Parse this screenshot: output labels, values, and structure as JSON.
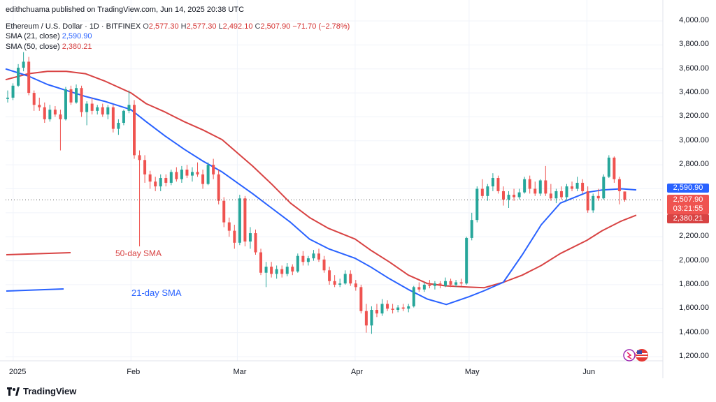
{
  "header": {
    "publisher": "edithchuama published on TradingView.com, Jun 14, 2025 20:38 UTC",
    "symbol": "Ethereum / U.S. Dollar · 1D · BITFINEX",
    "o_label": "O",
    "o": "2,577.30",
    "h_label": "H",
    "h": "2,577.30",
    "l_label": "L",
    "l": "2,492.10",
    "c_label": "C",
    "c": "2,507.90",
    "change": "−71.70 (−2.78%)",
    "sma21_label": "SMA (21, close)",
    "sma21_value": "2,590.90",
    "sma50_label": "SMA (50, close)",
    "sma50_value": "2,380.21"
  },
  "price_labels": {
    "sma21": "2,590.90",
    "last": "2,507.90",
    "countdown": "03:21:55",
    "sma50": "2,380.21"
  },
  "annotations": {
    "sma50": "50-day SMA",
    "sma21": "21-day SMA"
  },
  "brand": {
    "name": "TradingView",
    "logo_icon": "tradingview-logo-icon"
  },
  "colors": {
    "up": "#26a69a",
    "down": "#ef5350",
    "sma21": "#2962ff",
    "sma50": "#d84343"
  },
  "chart_data": {
    "type": "candlestick",
    "ylim": [
      1200,
      4000
    ],
    "yticks": [
      1200,
      1400,
      1600,
      1800,
      2000,
      2200,
      2400,
      2600,
      2800,
      3000,
      3200,
      3400,
      3600,
      3800,
      4000
    ],
    "ytick_labels": [
      "1,200.00",
      "1,400.00",
      "1,600.00",
      "1,800.00",
      "2,000.00",
      "2,200.00",
      "2,400.00",
      "2,600.00",
      "2,800.00",
      "3,000.00",
      "3,200.00",
      "3,400.00",
      "3,600.00",
      "3,800.00",
      "4,000.00"
    ],
    "xlim": [
      "2024-12-30",
      "2025-06-21"
    ],
    "xticks": [
      {
        "date": "2025-01-01",
        "label": "2025"
      },
      {
        "date": "2025-02-01",
        "label": "Feb"
      },
      {
        "date": "2025-03-01",
        "label": "Mar"
      },
      {
        "date": "2025-04-01",
        "label": "Apr"
      },
      {
        "date": "2025-05-01",
        "label": "May"
      },
      {
        "date": "2025-06-01",
        "label": "Jun"
      }
    ],
    "candles": [
      {
        "o": 3350,
        "h": 3420,
        "l": 3320,
        "c": 3360
      },
      {
        "o": 3360,
        "h": 3480,
        "l": 3340,
        "c": 3460
      },
      {
        "o": 3460,
        "h": 3640,
        "l": 3450,
        "c": 3610
      },
      {
        "o": 3610,
        "h": 3740,
        "l": 3580,
        "c": 3660
      },
      {
        "o": 3660,
        "h": 3700,
        "l": 3380,
        "c": 3400
      },
      {
        "o": 3400,
        "h": 3420,
        "l": 3250,
        "c": 3300
      },
      {
        "o": 3300,
        "h": 3360,
        "l": 3250,
        "c": 3280
      },
      {
        "o": 3280,
        "h": 3320,
        "l": 3150,
        "c": 3180
      },
      {
        "o": 3180,
        "h": 3300,
        "l": 3160,
        "c": 3260
      },
      {
        "o": 3260,
        "h": 3290,
        "l": 3200,
        "c": 3220
      },
      {
        "o": 3220,
        "h": 3260,
        "l": 2920,
        "c": 3180
      },
      {
        "o": 3180,
        "h": 3450,
        "l": 3170,
        "c": 3430
      },
      {
        "o": 3430,
        "h": 3460,
        "l": 3300,
        "c": 3320
      },
      {
        "o": 3320,
        "h": 3470,
        "l": 3310,
        "c": 3440
      },
      {
        "o": 3440,
        "h": 3460,
        "l": 3200,
        "c": 3240
      },
      {
        "o": 3240,
        "h": 3330,
        "l": 3130,
        "c": 3310
      },
      {
        "o": 3310,
        "h": 3360,
        "l": 3220,
        "c": 3250
      },
      {
        "o": 3250,
        "h": 3300,
        "l": 3220,
        "c": 3280
      },
      {
        "o": 3280,
        "h": 3310,
        "l": 3200,
        "c": 3220
      },
      {
        "o": 3220,
        "h": 3300,
        "l": 3180,
        "c": 3280
      },
      {
        "o": 3280,
        "h": 3300,
        "l": 3070,
        "c": 3100
      },
      {
        "o": 3100,
        "h": 3180,
        "l": 3050,
        "c": 3150
      },
      {
        "o": 3150,
        "h": 3260,
        "l": 3130,
        "c": 3250
      },
      {
        "o": 3250,
        "h": 3420,
        "l": 3230,
        "c": 3300
      },
      {
        "o": 3300,
        "h": 3340,
        "l": 2850,
        "c": 2880
      },
      {
        "o": 2880,
        "h": 2920,
        "l": 2120,
        "c": 2840
      },
      {
        "o": 2840,
        "h": 2880,
        "l": 2650,
        "c": 2720
      },
      {
        "o": 2720,
        "h": 2750,
        "l": 2600,
        "c": 2660
      },
      {
        "o": 2660,
        "h": 2700,
        "l": 2580,
        "c": 2620
      },
      {
        "o": 2620,
        "h": 2720,
        "l": 2580,
        "c": 2690
      },
      {
        "o": 2690,
        "h": 2720,
        "l": 2620,
        "c": 2650
      },
      {
        "o": 2650,
        "h": 2760,
        "l": 2630,
        "c": 2740
      },
      {
        "o": 2740,
        "h": 2780,
        "l": 2660,
        "c": 2680
      },
      {
        "o": 2680,
        "h": 2790,
        "l": 2650,
        "c": 2760
      },
      {
        "o": 2760,
        "h": 2800,
        "l": 2690,
        "c": 2710
      },
      {
        "o": 2710,
        "h": 2780,
        "l": 2660,
        "c": 2740
      },
      {
        "o": 2740,
        "h": 2820,
        "l": 2700,
        "c": 2720
      },
      {
        "o": 2720,
        "h": 2760,
        "l": 2600,
        "c": 2640
      },
      {
        "o": 2640,
        "h": 2820,
        "l": 2630,
        "c": 2800
      },
      {
        "o": 2800,
        "h": 2850,
        "l": 2680,
        "c": 2720
      },
      {
        "o": 2720,
        "h": 2760,
        "l": 2470,
        "c": 2500
      },
      {
        "o": 2500,
        "h": 2530,
        "l": 2280,
        "c": 2320
      },
      {
        "o": 2320,
        "h": 2360,
        "l": 2200,
        "c": 2250
      },
      {
        "o": 2250,
        "h": 2300,
        "l": 2100,
        "c": 2150
      },
      {
        "o": 2150,
        "h": 2550,
        "l": 2130,
        "c": 2520
      },
      {
        "o": 2520,
        "h": 2540,
        "l": 2120,
        "c": 2160
      },
      {
        "o": 2160,
        "h": 2280,
        "l": 2100,
        "c": 2230
      },
      {
        "o": 2230,
        "h": 2260,
        "l": 2050,
        "c": 2070
      },
      {
        "o": 2070,
        "h": 2100,
        "l": 1880,
        "c": 1900
      },
      {
        "o": 1900,
        "h": 1990,
        "l": 1780,
        "c": 1950
      },
      {
        "o": 1950,
        "h": 1990,
        "l": 1860,
        "c": 1890
      },
      {
        "o": 1890,
        "h": 1960,
        "l": 1850,
        "c": 1930
      },
      {
        "o": 1930,
        "h": 1960,
        "l": 1860,
        "c": 1890
      },
      {
        "o": 1890,
        "h": 1980,
        "l": 1870,
        "c": 1950
      },
      {
        "o": 1950,
        "h": 1970,
        "l": 1880,
        "c": 1910
      },
      {
        "o": 1910,
        "h": 2060,
        "l": 1900,
        "c": 2040
      },
      {
        "o": 2040,
        "h": 2080,
        "l": 1960,
        "c": 1990
      },
      {
        "o": 1990,
        "h": 2040,
        "l": 1960,
        "c": 2020
      },
      {
        "o": 2020,
        "h": 2090,
        "l": 2000,
        "c": 2060
      },
      {
        "o": 2060,
        "h": 2100,
        "l": 1990,
        "c": 2010
      },
      {
        "o": 2010,
        "h": 2040,
        "l": 1900,
        "c": 1920
      },
      {
        "o": 1920,
        "h": 1950,
        "l": 1800,
        "c": 1830
      },
      {
        "o": 1830,
        "h": 1880,
        "l": 1780,
        "c": 1800
      },
      {
        "o": 1800,
        "h": 1850,
        "l": 1780,
        "c": 1810
      },
      {
        "o": 1810,
        "h": 1920,
        "l": 1800,
        "c": 1890
      },
      {
        "o": 1890,
        "h": 1920,
        "l": 1790,
        "c": 1810
      },
      {
        "o": 1810,
        "h": 1840,
        "l": 1750,
        "c": 1780
      },
      {
        "o": 1780,
        "h": 1800,
        "l": 1560,
        "c": 1580
      },
      {
        "o": 1580,
        "h": 1640,
        "l": 1400,
        "c": 1460
      },
      {
        "o": 1460,
        "h": 1620,
        "l": 1390,
        "c": 1590
      },
      {
        "o": 1590,
        "h": 1640,
        "l": 1530,
        "c": 1560
      },
      {
        "o": 1560,
        "h": 1680,
        "l": 1540,
        "c": 1640
      },
      {
        "o": 1640,
        "h": 1670,
        "l": 1580,
        "c": 1600
      },
      {
        "o": 1600,
        "h": 1640,
        "l": 1560,
        "c": 1590
      },
      {
        "o": 1590,
        "h": 1630,
        "l": 1570,
        "c": 1610
      },
      {
        "o": 1610,
        "h": 1640,
        "l": 1580,
        "c": 1600
      },
      {
        "o": 1600,
        "h": 1640,
        "l": 1570,
        "c": 1620
      },
      {
        "o": 1620,
        "h": 1790,
        "l": 1610,
        "c": 1780
      },
      {
        "o": 1780,
        "h": 1820,
        "l": 1740,
        "c": 1760
      },
      {
        "o": 1760,
        "h": 1820,
        "l": 1740,
        "c": 1800
      },
      {
        "o": 1800,
        "h": 1840,
        "l": 1770,
        "c": 1790
      },
      {
        "o": 1790,
        "h": 1830,
        "l": 1760,
        "c": 1810
      },
      {
        "o": 1810,
        "h": 1830,
        "l": 1770,
        "c": 1790
      },
      {
        "o": 1790,
        "h": 1860,
        "l": 1780,
        "c": 1830
      },
      {
        "o": 1830,
        "h": 1850,
        "l": 1780,
        "c": 1800
      },
      {
        "o": 1800,
        "h": 1840,
        "l": 1780,
        "c": 1820
      },
      {
        "o": 1820,
        "h": 1850,
        "l": 1790,
        "c": 1810
      },
      {
        "o": 1810,
        "h": 2200,
        "l": 1800,
        "c": 2190
      },
      {
        "o": 2190,
        "h": 2400,
        "l": 2170,
        "c": 2340
      },
      {
        "o": 2340,
        "h": 2620,
        "l": 2320,
        "c": 2600
      },
      {
        "o": 2600,
        "h": 2680,
        "l": 2520,
        "c": 2540
      },
      {
        "o": 2540,
        "h": 2640,
        "l": 2500,
        "c": 2620
      },
      {
        "o": 2620,
        "h": 2730,
        "l": 2580,
        "c": 2690
      },
      {
        "o": 2690,
        "h": 2710,
        "l": 2560,
        "c": 2580
      },
      {
        "o": 2580,
        "h": 2620,
        "l": 2460,
        "c": 2510
      },
      {
        "o": 2510,
        "h": 2580,
        "l": 2440,
        "c": 2550
      },
      {
        "o": 2550,
        "h": 2600,
        "l": 2500,
        "c": 2530
      },
      {
        "o": 2530,
        "h": 2600,
        "l": 2510,
        "c": 2570
      },
      {
        "o": 2570,
        "h": 2700,
        "l": 2560,
        "c": 2680
      },
      {
        "o": 2680,
        "h": 2710,
        "l": 2560,
        "c": 2600
      },
      {
        "o": 2600,
        "h": 2660,
        "l": 2540,
        "c": 2560
      },
      {
        "o": 2560,
        "h": 2680,
        "l": 2540,
        "c": 2670
      },
      {
        "o": 2670,
        "h": 2790,
        "l": 2540,
        "c": 2560
      },
      {
        "o": 2560,
        "h": 2640,
        "l": 2500,
        "c": 2520
      },
      {
        "o": 2520,
        "h": 2600,
        "l": 2480,
        "c": 2580
      },
      {
        "o": 2580,
        "h": 2620,
        "l": 2510,
        "c": 2530
      },
      {
        "o": 2530,
        "h": 2640,
        "l": 2500,
        "c": 2620
      },
      {
        "o": 2620,
        "h": 2660,
        "l": 2580,
        "c": 2600
      },
      {
        "o": 2600,
        "h": 2700,
        "l": 2580,
        "c": 2650
      },
      {
        "o": 2650,
        "h": 2680,
        "l": 2560,
        "c": 2580
      },
      {
        "o": 2580,
        "h": 2620,
        "l": 2400,
        "c": 2420
      },
      {
        "o": 2420,
        "h": 2560,
        "l": 2400,
        "c": 2540
      },
      {
        "o": 2540,
        "h": 2600,
        "l": 2500,
        "c": 2520
      },
      {
        "o": 2520,
        "h": 2720,
        "l": 2510,
        "c": 2700
      },
      {
        "o": 2700,
        "h": 2880,
        "l": 2690,
        "c": 2860
      },
      {
        "o": 2860,
        "h": 2870,
        "l": 2650,
        "c": 2680
      },
      {
        "o": 2680,
        "h": 2700,
        "l": 2470,
        "c": 2580
      },
      {
        "o": 2577.3,
        "h": 2577.3,
        "l": 2492.1,
        "c": 2507.9
      }
    ],
    "sma21": [
      {
        "date": "2024-12-30",
        "v": 3600
      },
      {
        "date": "2025-01-05",
        "v": 3540
      },
      {
        "date": "2025-01-10",
        "v": 3470
      },
      {
        "date": "2025-01-15",
        "v": 3420
      },
      {
        "date": "2025-01-20",
        "v": 3370
      },
      {
        "date": "2025-01-25",
        "v": 3330
      },
      {
        "date": "2025-02-01",
        "v": 3260
      },
      {
        "date": "2025-02-05",
        "v": 3160
      },
      {
        "date": "2025-02-10",
        "v": 3040
      },
      {
        "date": "2025-02-15",
        "v": 2930
      },
      {
        "date": "2025-02-20",
        "v": 2830
      },
      {
        "date": "2025-02-25",
        "v": 2740
      },
      {
        "date": "2025-03-01",
        "v": 2650
      },
      {
        "date": "2025-03-05",
        "v": 2560
      },
      {
        "date": "2025-03-10",
        "v": 2440
      },
      {
        "date": "2025-03-15",
        "v": 2320
      },
      {
        "date": "2025-03-20",
        "v": 2180
      },
      {
        "date": "2025-03-25",
        "v": 2100
      },
      {
        "date": "2025-04-01",
        "v": 2020
      },
      {
        "date": "2025-04-05",
        "v": 1950
      },
      {
        "date": "2025-04-10",
        "v": 1850
      },
      {
        "date": "2025-04-15",
        "v": 1760
      },
      {
        "date": "2025-04-20",
        "v": 1680
      },
      {
        "date": "2025-04-25",
        "v": 1635
      },
      {
        "date": "2025-05-01",
        "v": 1700
      },
      {
        "date": "2025-05-05",
        "v": 1750
      },
      {
        "date": "2025-05-10",
        "v": 1820
      },
      {
        "date": "2025-05-15",
        "v": 2050
      },
      {
        "date": "2025-05-20",
        "v": 2300
      },
      {
        "date": "2025-05-25",
        "v": 2480
      },
      {
        "date": "2025-06-01",
        "v": 2570
      },
      {
        "date": "2025-06-05",
        "v": 2590
      },
      {
        "date": "2025-06-10",
        "v": 2600
      },
      {
        "date": "2025-06-14",
        "v": 2590.9
      }
    ],
    "sma50": [
      {
        "date": "2024-12-30",
        "v": 3510
      },
      {
        "date": "2025-01-05",
        "v": 3560
      },
      {
        "date": "2025-01-10",
        "v": 3580
      },
      {
        "date": "2025-01-15",
        "v": 3580
      },
      {
        "date": "2025-01-20",
        "v": 3560
      },
      {
        "date": "2025-01-25",
        "v": 3500
      },
      {
        "date": "2025-02-01",
        "v": 3400
      },
      {
        "date": "2025-02-05",
        "v": 3310
      },
      {
        "date": "2025-02-10",
        "v": 3240
      },
      {
        "date": "2025-02-15",
        "v": 3160
      },
      {
        "date": "2025-02-20",
        "v": 3090
      },
      {
        "date": "2025-02-25",
        "v": 3010
      },
      {
        "date": "2025-03-01",
        "v": 2900
      },
      {
        "date": "2025-03-05",
        "v": 2790
      },
      {
        "date": "2025-03-10",
        "v": 2640
      },
      {
        "date": "2025-03-15",
        "v": 2480
      },
      {
        "date": "2025-03-20",
        "v": 2360
      },
      {
        "date": "2025-03-25",
        "v": 2270
      },
      {
        "date": "2025-04-01",
        "v": 2180
      },
      {
        "date": "2025-04-05",
        "v": 2090
      },
      {
        "date": "2025-04-10",
        "v": 1990
      },
      {
        "date": "2025-04-15",
        "v": 1880
      },
      {
        "date": "2025-04-20",
        "v": 1810
      },
      {
        "date": "2025-04-25",
        "v": 1790
      },
      {
        "date": "2025-05-01",
        "v": 1780
      },
      {
        "date": "2025-05-05",
        "v": 1775
      },
      {
        "date": "2025-05-10",
        "v": 1820
      },
      {
        "date": "2025-05-15",
        "v": 1880
      },
      {
        "date": "2025-05-20",
        "v": 1960
      },
      {
        "date": "2025-05-25",
        "v": 2060
      },
      {
        "date": "2025-06-01",
        "v": 2170
      },
      {
        "date": "2025-06-05",
        "v": 2250
      },
      {
        "date": "2025-06-10",
        "v": 2330
      },
      {
        "date": "2025-06-14",
        "v": 2380.21
      }
    ]
  }
}
